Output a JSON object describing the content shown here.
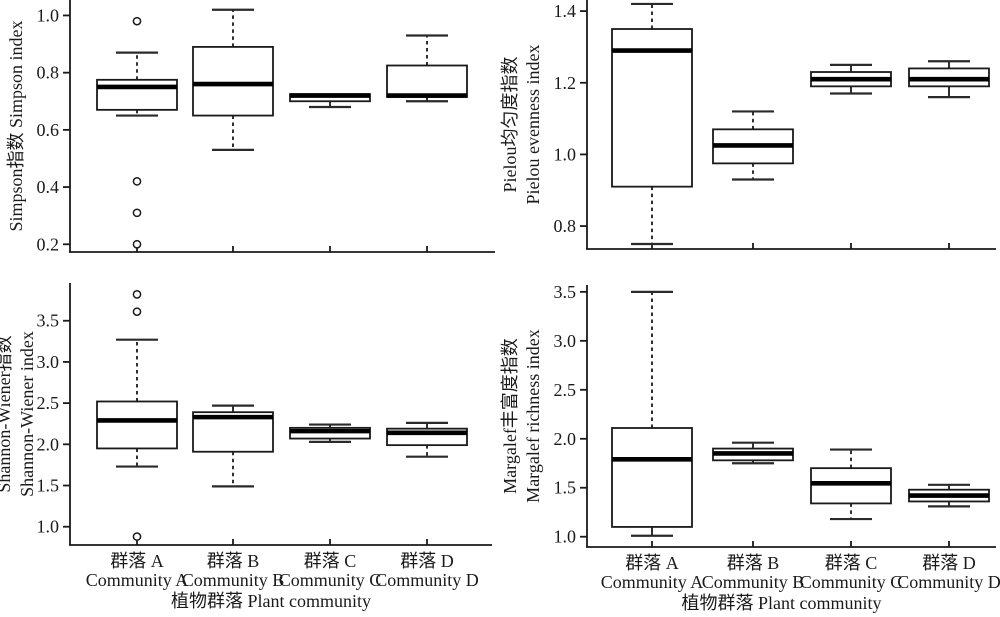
{
  "figure": {
    "background": "#ffffff",
    "ink_color": "#1a1a1a",
    "box_fill": "#ffffff",
    "cap_color": "#2a2a2a",
    "xlabel": "植物群落 Plant community",
    "categories_cn": [
      "群落 A",
      "群落 B",
      "群落 C",
      "群落 D"
    ],
    "categories_en": [
      "Community A",
      "Community B",
      "Community C",
      "Community D"
    ]
  },
  "chart_data": [
    {
      "type": "box",
      "panel": "top-left",
      "title": "",
      "ylabel_lines": [
        "Simpson指数 Simpson index"
      ],
      "yticks": [
        0.2,
        0.4,
        0.6,
        0.8,
        1.0
      ],
      "ylim": [
        0.173,
        1.054
      ],
      "grid": false,
      "show_x_labels": false,
      "categories": [
        "Community A",
        "Community B",
        "Community C",
        "Community D"
      ],
      "boxes": [
        {
          "label": "Community A",
          "q1": 0.67,
          "median": 0.75,
          "q3": 0.775,
          "whisker_low": 0.65,
          "whisker_high": 0.87,
          "low_style": "dashed",
          "high_style": "dashed",
          "outliers": [
            0.98,
            0.42,
            0.31,
            0.2
          ]
        },
        {
          "label": "Community B",
          "q1": 0.65,
          "median": 0.76,
          "q3": 0.89,
          "whisker_low": 0.53,
          "whisker_high": 1.02,
          "low_style": "dashed",
          "high_style": "dashed",
          "outliers": []
        },
        {
          "label": "Community C",
          "q1": 0.7,
          "median": 0.72,
          "q3": 0.725,
          "whisker_low": 0.68,
          "whisker_high": 0.725,
          "low_style": "solid",
          "high_style": "solid",
          "outliers": []
        },
        {
          "label": "Community D",
          "q1": 0.715,
          "median": 0.72,
          "q3": 0.825,
          "whisker_low": 0.7,
          "whisker_high": 0.93,
          "low_style": "solid",
          "high_style": "dashed",
          "outliers": []
        }
      ]
    },
    {
      "type": "box",
      "panel": "top-right",
      "title": "",
      "ylabel_lines": [
        "Pielou均匀度指数",
        "Pielou evenness index"
      ],
      "yticks": [
        0.8,
        1.0,
        1.2,
        1.4
      ],
      "ylim": [
        0.736,
        1.431
      ],
      "grid": false,
      "show_x_labels": false,
      "categories": [
        "Community A",
        "Community B",
        "Community C",
        "Community D"
      ],
      "boxes": [
        {
          "label": "Community A",
          "q1": 0.91,
          "median": 1.29,
          "q3": 1.35,
          "whisker_low": 0.75,
          "whisker_high": 1.42,
          "low_style": "dashed",
          "high_style": "dashed",
          "outliers": []
        },
        {
          "label": "Community B",
          "q1": 0.975,
          "median": 1.025,
          "q3": 1.07,
          "whisker_low": 0.93,
          "whisker_high": 1.12,
          "low_style": "dashed",
          "high_style": "dashed",
          "outliers": []
        },
        {
          "label": "Community C",
          "q1": 1.19,
          "median": 1.21,
          "q3": 1.23,
          "whisker_low": 1.17,
          "whisker_high": 1.25,
          "low_style": "solid",
          "high_style": "solid",
          "outliers": []
        },
        {
          "label": "Community D",
          "q1": 1.19,
          "median": 1.21,
          "q3": 1.24,
          "whisker_low": 1.16,
          "whisker_high": 1.26,
          "low_style": "solid",
          "high_style": "solid",
          "outliers": []
        }
      ]
    },
    {
      "type": "box",
      "panel": "bottom-left",
      "title": "",
      "ylabel_lines": [
        "Shannon-Wiener指数",
        "Shannon-Wiener index"
      ],
      "yticks": [
        1.0,
        1.5,
        2.0,
        2.5,
        3.0,
        3.5
      ],
      "ylim": [
        0.778,
        3.958
      ],
      "grid": false,
      "show_x_labels": true,
      "categories": [
        "Community A",
        "Community B",
        "Community C",
        "Community D"
      ],
      "boxes": [
        {
          "label": "Community A",
          "q1": 1.95,
          "median": 2.29,
          "q3": 2.52,
          "whisker_low": 1.73,
          "whisker_high": 3.27,
          "low_style": "dashed",
          "high_style": "dashed",
          "outliers": [
            3.82,
            3.61,
            0.88
          ]
        },
        {
          "label": "Community B",
          "q1": 1.91,
          "median": 2.33,
          "q3": 2.39,
          "whisker_low": 1.49,
          "whisker_high": 2.47,
          "low_style": "dashed",
          "high_style": "solid",
          "outliers": []
        },
        {
          "label": "Community C",
          "q1": 2.07,
          "median": 2.16,
          "q3": 2.2,
          "whisker_low": 2.03,
          "whisker_high": 2.24,
          "low_style": "solid",
          "high_style": "solid",
          "outliers": []
        },
        {
          "label": "Community D",
          "q1": 1.99,
          "median": 2.14,
          "q3": 2.19,
          "whisker_low": 1.85,
          "whisker_high": 2.26,
          "low_style": "dashed",
          "high_style": "solid",
          "outliers": []
        }
      ]
    },
    {
      "type": "box",
      "panel": "bottom-right",
      "title": "",
      "ylabel_lines": [
        "Margalef丰富度指数",
        "Margalef richness index"
      ],
      "yticks": [
        1.0,
        1.5,
        2.0,
        2.5,
        3.0,
        3.5
      ],
      "ylim": [
        0.895,
        3.57
      ],
      "grid": false,
      "show_x_labels": true,
      "categories": [
        "Community A",
        "Community B",
        "Community C",
        "Community D"
      ],
      "boxes": [
        {
          "label": "Community A",
          "q1": 1.1,
          "median": 1.79,
          "q3": 2.11,
          "whisker_low": 1.01,
          "whisker_high": 3.5,
          "low_style": "solid",
          "high_style": "dashed",
          "outliers": []
        },
        {
          "label": "Community B",
          "q1": 1.78,
          "median": 1.85,
          "q3": 1.9,
          "whisker_low": 1.75,
          "whisker_high": 1.96,
          "low_style": "solid",
          "high_style": "solid",
          "outliers": []
        },
        {
          "label": "Community C",
          "q1": 1.34,
          "median": 1.545,
          "q3": 1.7,
          "whisker_low": 1.18,
          "whisker_high": 1.89,
          "low_style": "dashed",
          "high_style": "dashed",
          "outliers": []
        },
        {
          "label": "Community D",
          "q1": 1.36,
          "median": 1.42,
          "q3": 1.48,
          "whisker_low": 1.31,
          "whisker_high": 1.53,
          "low_style": "solid",
          "high_style": "solid",
          "outliers": []
        }
      ]
    }
  ]
}
